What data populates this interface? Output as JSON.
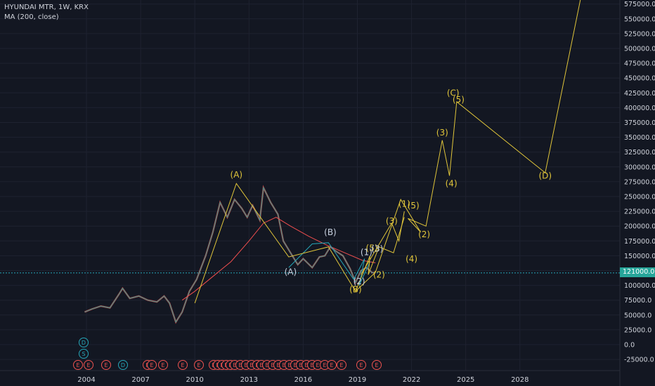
{
  "legend": {
    "symbol": "HYUNDAI MTR, 1W, KRX",
    "indicator": "MA (200, close)"
  },
  "last_price_label": "121000.0",
  "colors": {
    "background": "#131722",
    "grid": "#1e2230",
    "wave_primary": "#e0c53a",
    "wave_secondary": "#26a6b8",
    "ma": "#ef4e4e",
    "candle_up": "#26a69a",
    "candle_down": "#ef5350",
    "axis_text": "#d1d4dc"
  },
  "chart_data": {
    "type": "line",
    "title": "HYUNDAI MTR, 1W, KRX",
    "ylim": [
      -40000,
      585000
    ],
    "xlim": [
      2003.2,
      2031.4
    ],
    "y_ticks": [
      "-25000.0",
      "0.0",
      "25000.0",
      "50000.0",
      "75000.0",
      "100000.0",
      "125000.0",
      "150000.0",
      "175000.0",
      "200000.0",
      "225000.0",
      "250000.0",
      "275000.0",
      "300000.0",
      "325000.0",
      "350000.0",
      "375000.0",
      "400000.0",
      "425000.0",
      "450000.0",
      "475000.0",
      "500000.0",
      "525000.0",
      "550000.0",
      "575000.0"
    ],
    "x_ticks": [
      "2004",
      "2007",
      "2010",
      "2013",
      "2016",
      "2019",
      "2022",
      "2025",
      "2028"
    ],
    "price": [
      [
        2003.9,
        55000
      ],
      [
        2004.3,
        60000
      ],
      [
        2004.8,
        65000
      ],
      [
        2005.3,
        62000
      ],
      [
        2005.8,
        85000
      ],
      [
        2006.0,
        95000
      ],
      [
        2006.4,
        78000
      ],
      [
        2006.9,
        82000
      ],
      [
        2007.4,
        75000
      ],
      [
        2007.9,
        72000
      ],
      [
        2008.3,
        82000
      ],
      [
        2008.6,
        70000
      ],
      [
        2008.95,
        38000
      ],
      [
        2009.3,
        55000
      ],
      [
        2009.7,
        90000
      ],
      [
        2010.1,
        110000
      ],
      [
        2010.6,
        150000
      ],
      [
        2011.0,
        190000
      ],
      [
        2011.4,
        240000
      ],
      [
        2011.8,
        215000
      ],
      [
        2012.2,
        245000
      ],
      [
        2012.6,
        230000
      ],
      [
        2012.9,
        215000
      ],
      [
        2013.2,
        235000
      ],
      [
        2013.6,
        210000
      ],
      [
        2013.8,
        265000
      ],
      [
        2014.2,
        240000
      ],
      [
        2014.6,
        220000
      ],
      [
        2014.9,
        175000
      ],
      [
        2015.3,
        155000
      ],
      [
        2015.7,
        135000
      ],
      [
        2016.0,
        145000
      ],
      [
        2016.5,
        130000
      ],
      [
        2016.9,
        148000
      ],
      [
        2017.2,
        150000
      ],
      [
        2017.5,
        165000
      ],
      [
        2017.8,
        158000
      ],
      [
        2018.2,
        150000
      ],
      [
        2018.6,
        128000
      ],
      [
        2018.9,
        105000
      ],
      [
        2019.2,
        125000
      ],
      [
        2019.5,
        130000
      ],
      [
        2019.8,
        122000
      ],
      [
        2020.0,
        121000
      ]
    ],
    "ma": [
      [
        2009.3,
        75000
      ],
      [
        2010.0,
        90000
      ],
      [
        2011.0,
        115000
      ],
      [
        2012.0,
        140000
      ],
      [
        2013.0,
        175000
      ],
      [
        2013.8,
        205000
      ],
      [
        2014.5,
        215000
      ],
      [
        2015.3,
        200000
      ],
      [
        2016.3,
        183000
      ],
      [
        2017.3,
        168000
      ],
      [
        2018.3,
        155000
      ],
      [
        2019.3,
        142000
      ],
      [
        2020.0,
        138000
      ]
    ],
    "waves_yellow": [
      [
        [
          2010.0,
          70000
        ],
        [
          2012.3,
          272000
        ],
        [
          2015.2,
          148000
        ],
        [
          2017.4,
          165000
        ],
        [
          2018.9,
          90000
        ],
        [
          2020.0,
          122000
        ],
        [
          2021.4,
          245000
        ],
        [
          2022.5,
          190000
        ],
        [
          2021.8,
          213000
        ],
        [
          2022.8,
          200000
        ],
        [
          2023.7,
          345000
        ],
        [
          2024.1,
          285000
        ],
        [
          2024.5,
          410000
        ],
        [
          2029.4,
          290000
        ],
        [
          2031.4,
          590000
        ]
      ],
      [
        [
          2018.9,
          90000
        ],
        [
          2019.7,
          150000
        ],
        [
          2019.6,
          118000
        ],
        [
          2020.2,
          165000
        ],
        [
          2021.0,
          155000
        ],
        [
          2021.6,
          215000
        ]
      ],
      [
        [
          2019.2,
          118000
        ],
        [
          2020.9,
          205000
        ],
        [
          2021.3,
          175000
        ],
        [
          2021.6,
          225000
        ]
      ]
    ],
    "waves_cyan": [
      [
        [
          2015.2,
          130000
        ],
        [
          2016.5,
          170000
        ],
        [
          2017.4,
          172000
        ],
        [
          2018.8,
          110000
        ]
      ],
      [
        [
          2018.8,
          110000
        ],
        [
          2019.4,
          145000
        ],
        [
          2019.1,
          100000
        ],
        [
          2019.7,
          140000
        ],
        [
          2019.4,
          120000
        ]
      ]
    ],
    "labels_yellow": [
      {
        "text": "(A)",
        "x": 2012.3,
        "y": 282000
      },
      {
        "text": "(C)",
        "x": 2024.3,
        "y": 420000
      },
      {
        "text": "(5)",
        "x": 2024.6,
        "y": 409000
      },
      {
        "text": "(3)",
        "x": 2023.7,
        "y": 353000
      },
      {
        "text": "(4)",
        "x": 2024.2,
        "y": 267000
      },
      {
        "text": "(D)",
        "x": 2029.4,
        "y": 280000
      },
      {
        "text": "(1)",
        "x": 2021.6,
        "y": 233000
      },
      {
        "text": "(5)",
        "x": 2022.1,
        "y": 230000
      },
      {
        "text": "(2)",
        "x": 2022.7,
        "y": 181000
      },
      {
        "text": "(3)",
        "x": 2020.9,
        "y": 204000
      },
      {
        "text": "(4)",
        "x": 2022.0,
        "y": 140000
      },
      {
        "text": "(2)",
        "x": 2020.2,
        "y": 113000
      },
      {
        "text": "(B)",
        "x": 2018.9,
        "y": 88000
      },
      {
        "text": "(5)",
        "x": 2019.8,
        "y": 158000
      }
    ],
    "labels_cyan": [
      {
        "text": "(B)",
        "x": 2017.5,
        "y": 185000
      },
      {
        "text": "(A)",
        "x": 2015.3,
        "y": 118000
      },
      {
        "text": "(1)",
        "x": 2019.5,
        "y": 151000
      },
      {
        "text": "(3)",
        "x": 2020.1,
        "y": 157000
      },
      {
        "text": "(2)",
        "x": 2019.1,
        "y": 102000
      }
    ],
    "event_markers": {
      "row_d": [
        "D"
      ],
      "row_s": [
        "S"
      ],
      "row_e": [
        "E",
        "E",
        "E",
        "D",
        "E",
        "E",
        "E",
        "E",
        "E",
        "E",
        "E",
        "E",
        "E",
        "E",
        "E",
        "E",
        "E",
        "E",
        "E",
        "E",
        "E",
        "E",
        "E",
        "E",
        "E",
        "E",
        "E",
        "E",
        "E",
        "E",
        "E",
        "E",
        "E",
        "E",
        "E"
      ]
    }
  }
}
